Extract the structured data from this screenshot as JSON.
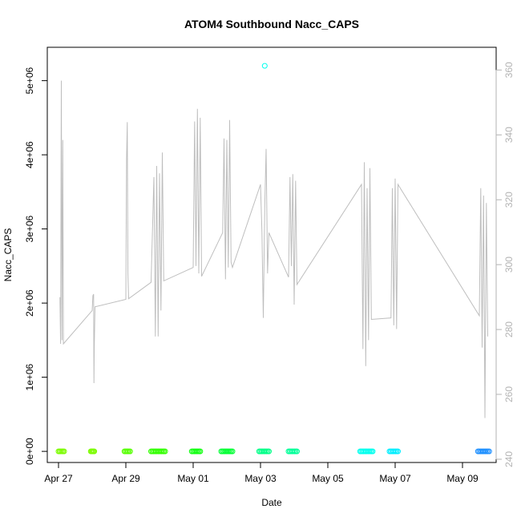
{
  "chart_data": {
    "type": "line",
    "title": "ATOM4 Southbound Nacc_CAPS",
    "xlabel": "Date",
    "ylabel": "Nacc_CAPS",
    "x_ticks": [
      "Apr 27",
      "Apr 29",
      "May 01",
      "May 03",
      "May 05",
      "May 07",
      "May 09"
    ],
    "x_tick_dates": [
      "2016-04-27",
      "2016-04-29",
      "2016-05-01",
      "2016-05-03",
      "2016-05-05",
      "2016-05-07",
      "2016-05-09"
    ],
    "xlim": [
      "2016-04-26T16:00",
      "2016-05-10T00:00"
    ],
    "y_ticks": [
      "0e+00",
      "1e+06",
      "2e+06",
      "3e+06",
      "4e+06",
      "5e+06"
    ],
    "y_tick_values": [
      0,
      1000000,
      2000000,
      3000000,
      4000000,
      5000000
    ],
    "ylim": [
      -150000,
      5450000
    ],
    "y2_ticks": [
      "240",
      "260",
      "280",
      "300",
      "320",
      "340",
      "360"
    ],
    "y2_tick_values": [
      240,
      260,
      280,
      300,
      320,
      340,
      360
    ],
    "y2lim": [
      239,
      367
    ],
    "grid": false,
    "colors": {
      "line": "#bebebe",
      "right_axis": "#b3b3b3",
      "frame": "#000000"
    },
    "series": [
      {
        "type": "line",
        "color": "#bebebe",
        "points": [
          [
            "2016-04-27T01:00",
            2080000.0
          ],
          [
            "2016-04-27T01:30",
            1450000.0
          ],
          [
            "2016-04-27T02:00",
            5000000.0
          ],
          [
            "2016-04-27T02:30",
            1500000.0
          ],
          [
            "2016-04-27T03:00",
            4200000.0
          ],
          [
            "2016-04-27T03:30",
            1450000.0
          ],
          [
            "2016-04-28T00:00",
            1900000.0
          ],
          [
            "2016-04-28T00:30",
            2100000.0
          ],
          [
            "2016-04-28T01:00",
            2120000.0
          ],
          [
            "2016-04-28T01:15",
            920000.0
          ],
          [
            "2016-04-28T01:30",
            1400000.0
          ],
          [
            "2016-04-28T02:00",
            1950000.0
          ],
          [
            "2016-04-29T00:00",
            2050000.0
          ],
          [
            "2016-04-29T00:30",
            3950000.0
          ],
          [
            "2016-04-29T01:00",
            4440000.0
          ],
          [
            "2016-04-29T01:30",
            2400000.0
          ],
          [
            "2016-04-29T02:00",
            2060000.0
          ],
          [
            "2016-04-29T18:00",
            2280000.0
          ],
          [
            "2016-04-29T20:00",
            3700000.0
          ],
          [
            "2016-04-29T21:00",
            1550000.0
          ],
          [
            "2016-04-29T22:00",
            3850000.0
          ],
          [
            "2016-04-29T23:00",
            1550000.0
          ],
          [
            "2016-04-30T00:00",
            3750000.0
          ],
          [
            "2016-04-30T01:00",
            1900000.0
          ],
          [
            "2016-04-30T02:00",
            4030000.0
          ],
          [
            "2016-04-30T03:00",
            2300000.0
          ],
          [
            "2016-05-01T00:00",
            2480000.0
          ],
          [
            "2016-05-01T01:00",
            4450000.0
          ],
          [
            "2016-05-01T02:00",
            2500000.0
          ],
          [
            "2016-05-01T03:00",
            4620000.0
          ],
          [
            "2016-05-01T04:00",
            2400000.0
          ],
          [
            "2016-05-01T05:00",
            4500000.0
          ],
          [
            "2016-05-01T06:00",
            2360000.0
          ],
          [
            "2016-05-01T21:00",
            2950000.0
          ],
          [
            "2016-05-01T22:00",
            4220000.0
          ],
          [
            "2016-05-01T23:00",
            2320000.0
          ],
          [
            "2016-05-02T00:00",
            4200000.0
          ],
          [
            "2016-05-02T01:00",
            2480000.0
          ],
          [
            "2016-05-02T02:00",
            4470000.0
          ],
          [
            "2016-05-02T03:00",
            2550000.0
          ],
          [
            "2016-05-02T04:00",
            2480000.0
          ],
          [
            "2016-05-03T00:00",
            3600000.0
          ],
          [
            "2016-05-03T01:00",
            2960000.0
          ],
          [
            "2016-05-03T02:00",
            1800000.0
          ],
          [
            "2016-05-03T03:00",
            3300000.0
          ],
          [
            "2016-05-03T04:00",
            4080000.0
          ],
          [
            "2016-05-03T05:00",
            2400000.0
          ],
          [
            "2016-05-03T06:00",
            2950000.0
          ],
          [
            "2016-05-03T20:00",
            2350000.0
          ],
          [
            "2016-05-03T21:00",
            3700000.0
          ],
          [
            "2016-05-03T22:00",
            2500000.0
          ],
          [
            "2016-05-03T23:00",
            3740000.0
          ],
          [
            "2016-05-04T00:00",
            1980000.0
          ],
          [
            "2016-05-04T01:00",
            3650000.0
          ],
          [
            "2016-05-04T02:00",
            2250000.0
          ],
          [
            "2016-05-06T00:00",
            3600000.0
          ],
          [
            "2016-05-06T01:00",
            1380000.0
          ],
          [
            "2016-05-06T02:00",
            3900000.0
          ],
          [
            "2016-05-06T03:00",
            1150000.0
          ],
          [
            "2016-05-06T04:00",
            3550000.0
          ],
          [
            "2016-05-06T05:00",
            1500000.0
          ],
          [
            "2016-05-06T06:00",
            3820000.0
          ],
          [
            "2016-05-06T07:00",
            1780000.0
          ],
          [
            "2016-05-06T21:00",
            1800000.0
          ],
          [
            "2016-05-06T22:00",
            3550000.0
          ],
          [
            "2016-05-06T23:00",
            1700000.0
          ],
          [
            "2016-05-07T00:00",
            3680000.0
          ],
          [
            "2016-05-07T01:00",
            1650000.0
          ],
          [
            "2016-05-07T02:00",
            3600000.0
          ],
          [
            "2016-05-09T12:00",
            1830000.0
          ],
          [
            "2016-05-09T13:00",
            3550000.0
          ],
          [
            "2016-05-09T14:00",
            1400000.0
          ],
          [
            "2016-05-09T15:00",
            3450000.0
          ],
          [
            "2016-05-09T16:00",
            450000.0
          ],
          [
            "2016-05-09T17:00",
            3350000.0
          ],
          [
            "2016-05-09T18:00",
            1550000.0
          ]
        ]
      },
      {
        "type": "scatter",
        "note_axis": "y",
        "groups": [
          {
            "color": "#7cfc00",
            "from": "2016-04-27T00:00",
            "to": "2016-04-27T04:00",
            "y": 0
          },
          {
            "color": "#7cfc00",
            "from": "2016-04-27T23:00",
            "to": "2016-04-28T01:30",
            "y": 0
          },
          {
            "color": "#55ff00",
            "from": "2016-04-28T23:00",
            "to": "2016-04-29T03:00",
            "y": 0
          },
          {
            "color": "#33ff00",
            "from": "2016-04-29T18:00",
            "to": "2016-04-30T04:00",
            "y": 0
          },
          {
            "color": "#11ff11",
            "from": "2016-04-30T23:00",
            "to": "2016-05-01T05:00",
            "y": 0
          },
          {
            "color": "#00ff33",
            "from": "2016-05-01T20:00",
            "to": "2016-05-02T04:00",
            "y": 0
          },
          {
            "color": "#00ff88",
            "from": "2016-05-02T23:00",
            "to": "2016-05-03T06:00",
            "y": 0
          },
          {
            "color": "#00ff99",
            "from": "2016-05-03T20:00",
            "to": "2016-05-04T02:00",
            "y": 0
          },
          {
            "color": "#00ffee",
            "from": "2016-05-05T23:00",
            "to": "2016-05-06T08:00",
            "y": 0
          },
          {
            "color": "#00eeff",
            "from": "2016-05-06T20:00",
            "to": "2016-05-07T02:00",
            "y": 0
          },
          {
            "color": "#1e90ff",
            "from": "2016-05-09T11:00",
            "to": "2016-05-09T19:00",
            "y": 0
          }
        ]
      },
      {
        "type": "scatter",
        "color": "#00ffee",
        "points": [
          [
            "2016-05-03T03:00",
            5200000.0
          ]
        ]
      }
    ]
  }
}
